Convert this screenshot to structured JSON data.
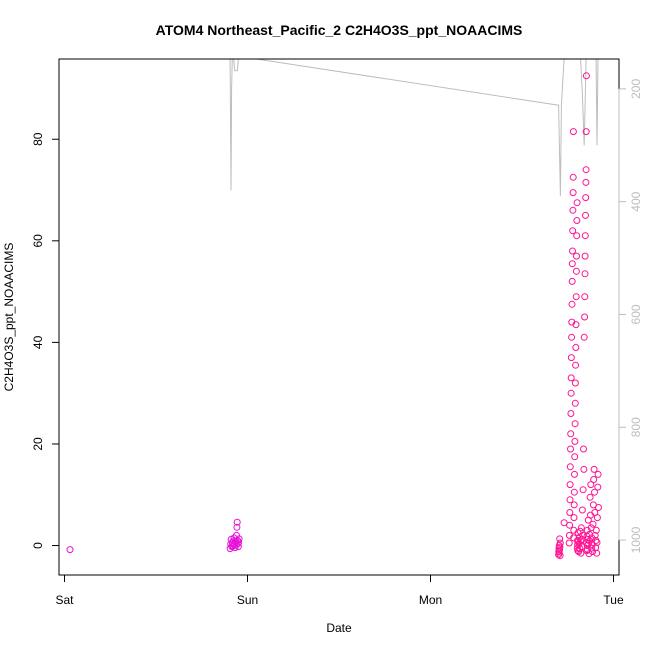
{
  "chart_data": {
    "type": "scatter",
    "title": "ATOM4 Northeast_Pacific_2 C2H4O3S_ppt_NOAACIMS",
    "xlabel": "Date",
    "ylabel": "C2H4O3S_ppt_NOAACIMS",
    "x_unit": "days",
    "xlim": [
      -0.03,
      3.03
    ],
    "ylim": [
      -5.8,
      95.8
    ],
    "x_ticks": [
      {
        "label": "Sat",
        "value": 0
      },
      {
        "label": "Sun",
        "value": 1
      },
      {
        "label": "Mon",
        "value": 2
      },
      {
        "label": "Tue",
        "value": 3
      }
    ],
    "y_ticks": [
      0,
      20,
      40,
      60,
      80
    ],
    "y2_ticks": [
      200,
      400,
      600,
      800,
      1000
    ],
    "y2lim": [
      1062,
      147
    ],
    "grid": false,
    "marker": "open-circle",
    "pressure_color": "#bdbdbd",
    "series": [
      {
        "color": "#e614d6",
        "points": [
          [
            0.03,
            -0.8
          ],
          [
            0.905,
            -0.6
          ],
          [
            0.908,
            0.3
          ],
          [
            0.911,
            1.2
          ],
          [
            0.914,
            -0.2
          ],
          [
            0.917,
            0.6
          ],
          [
            0.92,
            -0.1
          ],
          [
            0.923,
            0.9
          ],
          [
            0.926,
            1.5
          ],
          [
            0.929,
            0.2
          ],
          [
            0.932,
            -0.4
          ],
          [
            0.935,
            0.8
          ],
          [
            0.938,
            0.1
          ],
          [
            0.94,
            2.0
          ],
          [
            0.942,
            3.6
          ],
          [
            0.944,
            4.6
          ],
          [
            0.946,
            1.0
          ],
          [
            0.948,
            0.4
          ],
          [
            0.95,
            -0.2
          ],
          [
            0.952,
            0.7
          ],
          [
            0.954,
            1.3
          ]
        ]
      },
      {
        "color": "#ff1493",
        "points": [
          [
            2.7,
            -1.8
          ],
          [
            2.701,
            -1.2
          ],
          [
            2.702,
            -0.6
          ],
          [
            2.703,
            0.0
          ],
          [
            2.704,
            -1.5
          ],
          [
            2.705,
            -0.9
          ],
          [
            2.706,
            1.3
          ],
          [
            2.707,
            -0.3
          ],
          [
            2.708,
            -2.0
          ],
          [
            2.709,
            0.5
          ],
          [
            2.73,
            4.5
          ],
          [
            2.758,
            0.5
          ],
          [
            2.759,
            2.0
          ],
          [
            2.76,
            4.0
          ],
          [
            2.761,
            6.5
          ],
          [
            2.762,
            9.0
          ],
          [
            2.763,
            12.0
          ],
          [
            2.764,
            15.5
          ],
          [
            2.765,
            19.0
          ],
          [
            2.766,
            22.0
          ],
          [
            2.767,
            26.0
          ],
          [
            2.768,
            30.0
          ],
          [
            2.769,
            33.0
          ],
          [
            2.77,
            37.0
          ],
          [
            2.771,
            41.0
          ],
          [
            2.772,
            44.0
          ],
          [
            2.773,
            47.5
          ],
          [
            2.774,
            52.0
          ],
          [
            2.775,
            55.5
          ],
          [
            2.776,
            58.0
          ],
          [
            2.777,
            62.0
          ],
          [
            2.778,
            66.0
          ],
          [
            2.779,
            69.5
          ],
          [
            2.78,
            72.5
          ],
          [
            2.781,
            81.5
          ],
          [
            2.782,
            1.5
          ],
          [
            2.783,
            3.0
          ],
          [
            2.784,
            5.5
          ],
          [
            2.785,
            8.0
          ],
          [
            2.786,
            10.5
          ],
          [
            2.787,
            14.0
          ],
          [
            2.788,
            17.5
          ],
          [
            2.789,
            20.5
          ],
          [
            2.79,
            24.0
          ],
          [
            2.791,
            28.0
          ],
          [
            2.792,
            32.0
          ],
          [
            2.793,
            35.5
          ],
          [
            2.794,
            39.0
          ],
          [
            2.795,
            43.5
          ],
          [
            2.796,
            49.0
          ],
          [
            2.797,
            54.0
          ],
          [
            2.798,
            57.0
          ],
          [
            2.799,
            61.0
          ],
          [
            2.8,
            64.0
          ],
          [
            2.801,
            67.5
          ],
          [
            2.802,
            -0.5
          ],
          [
            2.803,
            1.0
          ],
          [
            2.804,
            0.2
          ],
          [
            2.805,
            -1.0
          ],
          [
            2.806,
            2.5
          ],
          [
            2.807,
            0.8
          ],
          [
            2.81,
            -1.2
          ],
          [
            2.812,
            0.3
          ],
          [
            2.814,
            1.6
          ],
          [
            2.816,
            -0.6
          ],
          [
            2.818,
            2.8
          ],
          [
            2.82,
            0.9
          ],
          [
            2.822,
            -1.5
          ],
          [
            2.824,
            3.5
          ],
          [
            2.826,
            1.2
          ],
          [
            2.828,
            -0.2
          ],
          [
            2.83,
            7.0
          ],
          [
            2.832,
            2.0
          ],
          [
            2.834,
            11.0
          ],
          [
            2.836,
            19.0
          ],
          [
            2.838,
            15.0
          ],
          [
            2.84,
            41.0
          ],
          [
            2.842,
            45.0
          ],
          [
            2.843,
            49.0
          ],
          [
            2.844,
            53.5
          ],
          [
            2.845,
            57.0
          ],
          [
            2.846,
            61.0
          ],
          [
            2.847,
            65.0
          ],
          [
            2.848,
            68.5
          ],
          [
            2.849,
            71.5
          ],
          [
            2.85,
            74.0
          ],
          [
            2.851,
            81.5
          ],
          [
            2.852,
            92.5
          ],
          [
            2.853,
            0.5
          ],
          [
            2.854,
            -1.0
          ],
          [
            2.855,
            1.8
          ],
          [
            2.856,
            0.0
          ],
          [
            2.857,
            3.0
          ],
          [
            2.858,
            -0.8
          ],
          [
            2.86,
            1.2
          ],
          [
            2.862,
            5.0
          ],
          [
            2.864,
            0.4
          ],
          [
            2.866,
            -1.6
          ],
          [
            2.868,
            2.2
          ],
          [
            2.87,
            0.9
          ],
          [
            2.872,
            9.5
          ],
          [
            2.874,
            6.0
          ],
          [
            2.876,
            12.0
          ],
          [
            2.878,
            3.5
          ],
          [
            2.88,
            -0.5
          ],
          [
            2.882,
            1.5
          ],
          [
            2.884,
            0.2
          ],
          [
            2.886,
            -1.2
          ],
          [
            2.888,
            4.2
          ],
          [
            2.89,
            8.0
          ],
          [
            2.892,
            13.0
          ],
          [
            2.894,
            15.0
          ],
          [
            2.896,
            10.5
          ],
          [
            2.898,
            6.5
          ],
          [
            2.9,
            2.0
          ],
          [
            2.902,
            -0.4
          ],
          [
            2.904,
            1.0
          ],
          [
            2.906,
            3.0
          ],
          [
            2.908,
            -1.5
          ],
          [
            2.91,
            0.6
          ],
          [
            2.912,
            5.5
          ],
          [
            2.914,
            11.5
          ],
          [
            2.916,
            14.0
          ],
          [
            2.918,
            7.5
          ]
        ]
      }
    ],
    "pressure_trace": [
      [
        0.78,
        147
      ],
      [
        0.9,
        147
      ],
      [
        0.905,
        147
      ],
      [
        0.91,
        380
      ],
      [
        0.913,
        200
      ],
      [
        0.917,
        147
      ],
      [
        0.92,
        147
      ],
      [
        0.925,
        147
      ],
      [
        0.93,
        168
      ],
      [
        0.945,
        168
      ],
      [
        0.95,
        147
      ],
      [
        1.05,
        147
      ],
      [
        2.7,
        229
      ],
      [
        2.71,
        390
      ],
      [
        2.715,
        229
      ],
      [
        2.72,
        200
      ],
      [
        2.73,
        147
      ],
      [
        2.76,
        147
      ],
      [
        2.765,
        147
      ],
      [
        2.77,
        147
      ],
      [
        2.82,
        147
      ],
      [
        2.83,
        210
      ],
      [
        2.84,
        300
      ],
      [
        2.85,
        147
      ],
      [
        2.86,
        147
      ],
      [
        2.87,
        147
      ],
      [
        2.88,
        147
      ],
      [
        2.89,
        147
      ],
      [
        2.9,
        147
      ],
      [
        2.905,
        147
      ],
      [
        2.91,
        300
      ],
      [
        2.915,
        147
      ],
      [
        2.92,
        147
      ]
    ]
  }
}
